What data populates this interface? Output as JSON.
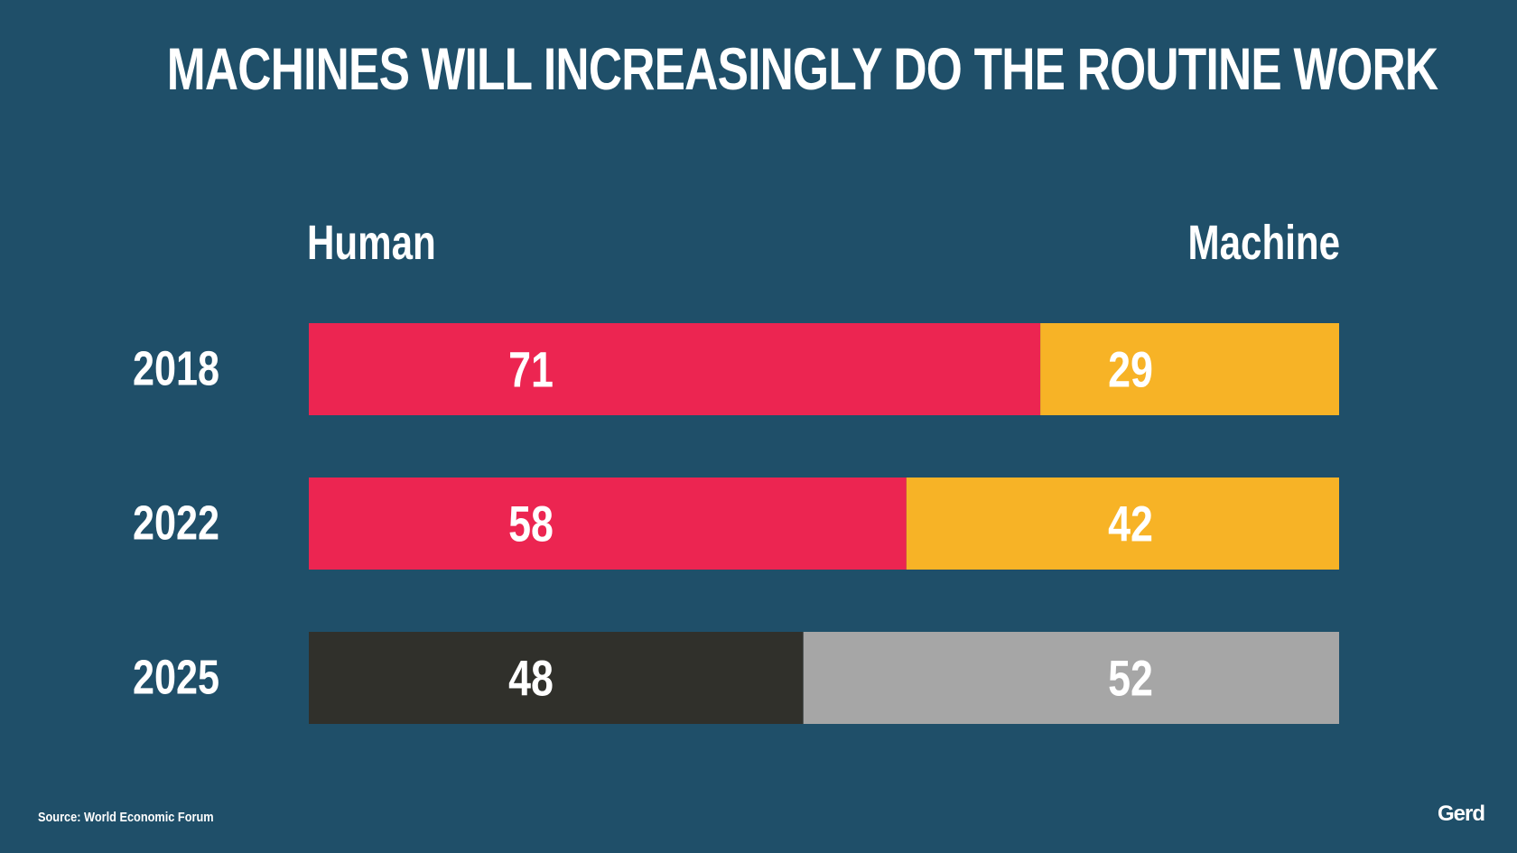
{
  "title": "MACHINES WILL INCREASINGLY DO THE ROUTINE WORK",
  "legend": {
    "human": "Human",
    "machine": "Machine"
  },
  "source": "Source: World Economic Forum",
  "logo": "Gerd",
  "chart_data": {
    "type": "bar",
    "orientation": "horizontal",
    "stacked": true,
    "categories": [
      "2018",
      "2022",
      "2025"
    ],
    "series": [
      {
        "name": "Human",
        "values": [
          71,
          58,
          48
        ],
        "colors": [
          "#ec2551",
          "#ec2551",
          "#30302b"
        ]
      },
      {
        "name": "Machine",
        "values": [
          29,
          42,
          52
        ],
        "colors": [
          "#f7b326",
          "#f7b326",
          "#a6a6a6"
        ]
      }
    ],
    "xlim": [
      0,
      100
    ],
    "grid": false,
    "legend": "top"
  }
}
